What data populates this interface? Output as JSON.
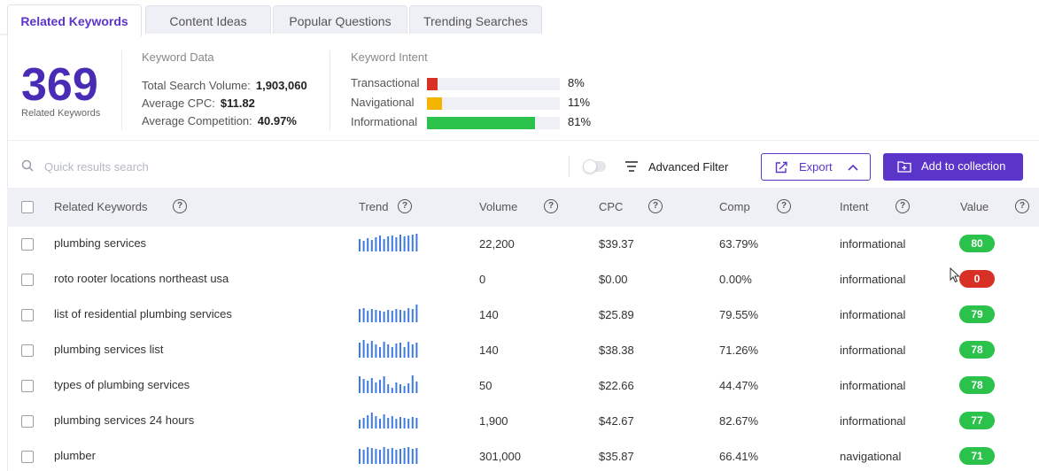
{
  "tabs": [
    {
      "label": "Related Keywords",
      "active": true
    },
    {
      "label": "Content Ideas",
      "active": false
    },
    {
      "label": "Popular Questions",
      "active": false
    },
    {
      "label": "Trending Searches",
      "active": false
    }
  ],
  "summary": {
    "count": "369",
    "count_label": "Related Keywords",
    "keyword_data_title": "Keyword Data",
    "total_volume_label": "Total Search Volume:",
    "total_volume_value": "1,903,060",
    "avg_cpc_label": "Average CPC:",
    "avg_cpc_value": "$11.82",
    "avg_comp_label": "Average Competition:",
    "avg_comp_value": "40.97%",
    "intent_title": "Keyword Intent",
    "intents": [
      {
        "label": "Transactional",
        "pct": "8%",
        "fraction": 0.08,
        "color": "#d93025"
      },
      {
        "label": "Navigational",
        "pct": "11%",
        "fraction": 0.11,
        "color": "#f4b400"
      },
      {
        "label": "Informational",
        "pct": "81%",
        "fraction": 0.81,
        "color": "#2ac24a"
      }
    ]
  },
  "toolbar": {
    "search_placeholder": "Quick results search",
    "advanced_filter_label": "Advanced Filter",
    "export_label": "Export",
    "add_collection_label": "Add to collection"
  },
  "table": {
    "columns": [
      "Related Keywords",
      "Trend",
      "Volume",
      "CPC",
      "Comp",
      "Intent",
      "Value"
    ],
    "rows": [
      {
        "keyword": "plumbing services",
        "volume": "22,200",
        "cpc": "$39.37",
        "comp": "63.79%",
        "intent": "informational",
        "value": "80",
        "value_color": "#2ac24a",
        "trend": [
          0.7,
          0.6,
          0.75,
          0.65,
          0.8,
          0.9,
          0.7,
          0.85,
          0.9,
          0.8,
          0.95,
          0.85,
          0.9,
          0.95,
          1.0
        ]
      },
      {
        "keyword": "roto rooter locations northeast usa",
        "volume": "0",
        "cpc": "$0.00",
        "comp": "0.00%",
        "intent": "informational",
        "value": "0",
        "value_color": "#d93025",
        "trend": []
      },
      {
        "keyword": "list of residential plumbing services",
        "volume": "140",
        "cpc": "$25.89",
        "comp": "79.55%",
        "intent": "informational",
        "value": "79",
        "value_color": "#2ac24a",
        "trend": [
          0.75,
          0.8,
          0.65,
          0.75,
          0.7,
          0.65,
          0.6,
          0.7,
          0.65,
          0.75,
          0.7,
          0.65,
          0.8,
          0.75,
          1.0
        ]
      },
      {
        "keyword": "plumbing services list",
        "volume": "140",
        "cpc": "$38.38",
        "comp": "71.26%",
        "intent": "informational",
        "value": "78",
        "value_color": "#2ac24a",
        "trend": [
          0.85,
          1.0,
          0.8,
          0.95,
          0.75,
          0.6,
          0.9,
          0.75,
          0.6,
          0.8,
          0.85,
          0.6,
          0.9,
          0.75,
          0.85
        ]
      },
      {
        "keyword": "types of plumbing services",
        "volume": "50",
        "cpc": "$22.66",
        "comp": "44.47%",
        "intent": "informational",
        "value": "78",
        "value_color": "#2ac24a",
        "trend": [
          0.95,
          0.8,
          0.7,
          0.85,
          0.6,
          0.75,
          0.95,
          0.5,
          0.3,
          0.6,
          0.5,
          0.4,
          0.55,
          1.0,
          0.65
        ]
      },
      {
        "keyword": "plumbing services 24 hours",
        "volume": "1,900",
        "cpc": "$42.67",
        "comp": "82.67%",
        "intent": "informational",
        "value": "77",
        "value_color": "#2ac24a",
        "trend": [
          0.5,
          0.6,
          0.75,
          0.9,
          0.7,
          0.55,
          0.8,
          0.6,
          0.7,
          0.55,
          0.65,
          0.6,
          0.55,
          0.65,
          0.6
        ]
      },
      {
        "keyword": "plumber",
        "volume": "301,000",
        "cpc": "$35.87",
        "comp": "66.41%",
        "intent": "navigational",
        "value": "71",
        "value_color": "#2ac24a",
        "trend": [
          0.85,
          0.8,
          0.95,
          0.9,
          0.85,
          0.8,
          0.95,
          0.85,
          0.9,
          0.8,
          0.85,
          0.9,
          0.95,
          0.85,
          0.9
        ]
      }
    ]
  }
}
